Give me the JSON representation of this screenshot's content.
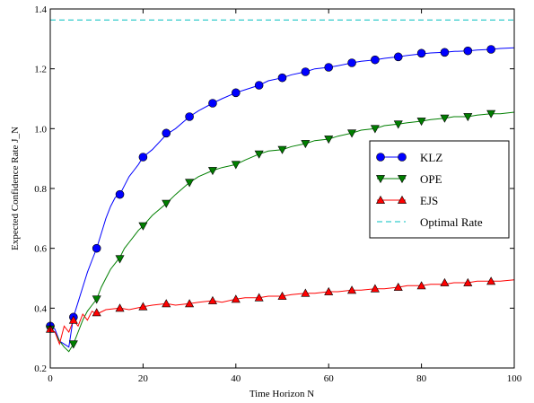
{
  "chart_data": {
    "type": "line",
    "xlabel": "Time Horizon N",
    "ylabel": "Expected Confidence Rate J_N",
    "xlim": [
      0,
      100
    ],
    "ylim": [
      0.2,
      1.4
    ],
    "x_ticks": [
      "0",
      "20",
      "40",
      "60",
      "80",
      "100"
    ],
    "y_ticks": [
      "0.2",
      "0.4",
      "0.6",
      "0.8",
      "1.0",
      "1.2",
      "1.4"
    ],
    "grid": false,
    "legend_position": "center-right",
    "series": [
      {
        "name": "KLZ",
        "color": "#0000ff",
        "marker": "circle",
        "line_x": [
          0,
          1,
          2,
          3,
          4,
          5,
          6,
          7,
          8,
          9,
          10,
          11,
          12,
          13,
          14,
          15,
          16,
          17,
          18,
          19,
          20,
          22,
          25,
          27,
          30,
          32,
          35,
          37,
          40,
          42,
          45,
          47,
          50,
          52,
          55,
          57,
          60,
          62,
          65,
          67,
          70,
          72,
          75,
          77,
          80,
          82,
          85,
          87,
          90,
          92,
          95,
          97,
          100
        ],
        "line_y": [
          0.34,
          0.33,
          0.29,
          0.28,
          0.27,
          0.37,
          0.42,
          0.47,
          0.52,
          0.56,
          0.6,
          0.65,
          0.7,
          0.74,
          0.77,
          0.78,
          0.81,
          0.84,
          0.86,
          0.88,
          0.905,
          0.93,
          0.98,
          1.0,
          1.04,
          1.06,
          1.085,
          1.1,
          1.12,
          1.13,
          1.145,
          1.16,
          1.17,
          1.18,
          1.19,
          1.2,
          1.205,
          1.21,
          1.22,
          1.225,
          1.23,
          1.235,
          1.24,
          1.245,
          1.25,
          1.253,
          1.255,
          1.258,
          1.26,
          1.263,
          1.265,
          1.268,
          1.27
        ],
        "marker_x": [
          0,
          5,
          10,
          15,
          20,
          25,
          30,
          35,
          40,
          45,
          50,
          55,
          60,
          65,
          70,
          75,
          80,
          85,
          90,
          95
        ],
        "marker_y": [
          0.34,
          0.37,
          0.6,
          0.78,
          0.905,
          0.985,
          1.04,
          1.085,
          1.12,
          1.145,
          1.17,
          1.19,
          1.205,
          1.22,
          1.23,
          1.24,
          1.252,
          1.255,
          1.26,
          1.265
        ]
      },
      {
        "name": "OPE",
        "color": "#007f00",
        "marker": "triangle-down",
        "line_x": [
          0,
          1,
          2,
          3,
          4,
          5,
          6,
          7,
          8,
          9,
          10,
          11,
          12,
          13,
          14,
          15,
          16,
          17,
          18,
          19,
          20,
          22,
          25,
          27,
          30,
          32,
          35,
          37,
          40,
          42,
          45,
          47,
          50,
          52,
          55,
          57,
          60,
          62,
          65,
          67,
          70,
          72,
          75,
          77,
          80,
          82,
          85,
          87,
          90,
          92,
          95,
          97,
          100
        ],
        "line_y": [
          0.33,
          0.32,
          0.29,
          0.27,
          0.255,
          0.28,
          0.32,
          0.36,
          0.39,
          0.41,
          0.43,
          0.47,
          0.5,
          0.53,
          0.55,
          0.57,
          0.6,
          0.62,
          0.64,
          0.66,
          0.675,
          0.71,
          0.75,
          0.78,
          0.82,
          0.84,
          0.86,
          0.87,
          0.88,
          0.895,
          0.915,
          0.925,
          0.93,
          0.94,
          0.95,
          0.96,
          0.965,
          0.975,
          0.985,
          0.995,
          1.0,
          1.01,
          1.015,
          1.02,
          1.025,
          1.03,
          1.035,
          1.04,
          1.04,
          1.045,
          1.05,
          1.05,
          1.055
        ],
        "marker_x": [
          0,
          5,
          10,
          15,
          20,
          25,
          30,
          35,
          40,
          45,
          50,
          55,
          60,
          65,
          70,
          75,
          80,
          85,
          90,
          95
        ],
        "marker_y": [
          0.33,
          0.28,
          0.43,
          0.565,
          0.675,
          0.75,
          0.82,
          0.86,
          0.88,
          0.915,
          0.93,
          0.95,
          0.965,
          0.985,
          1.0,
          1.015,
          1.025,
          1.035,
          1.04,
          1.05
        ]
      },
      {
        "name": "EJS",
        "color": "#ff0000",
        "marker": "triangle-up",
        "line_x": [
          0,
          1,
          2,
          3,
          4,
          5,
          6,
          7,
          8,
          9,
          10,
          12,
          15,
          17,
          20,
          22,
          25,
          27,
          30,
          32,
          35,
          37,
          40,
          42,
          45,
          47,
          50,
          52,
          55,
          57,
          60,
          62,
          65,
          67,
          70,
          72,
          75,
          77,
          80,
          82,
          85,
          87,
          90,
          92,
          95,
          97,
          100
        ],
        "line_y": [
          0.33,
          0.32,
          0.28,
          0.34,
          0.32,
          0.36,
          0.34,
          0.38,
          0.36,
          0.39,
          0.38,
          0.395,
          0.4,
          0.395,
          0.405,
          0.41,
          0.415,
          0.41,
          0.415,
          0.42,
          0.425,
          0.42,
          0.43,
          0.435,
          0.435,
          0.44,
          0.44,
          0.445,
          0.45,
          0.45,
          0.455,
          0.455,
          0.46,
          0.46,
          0.465,
          0.465,
          0.47,
          0.475,
          0.475,
          0.48,
          0.48,
          0.485,
          0.485,
          0.49,
          0.49,
          0.49,
          0.495
        ],
        "marker_x": [
          0,
          5,
          10,
          15,
          20,
          25,
          30,
          35,
          40,
          45,
          50,
          55,
          60,
          65,
          70,
          75,
          80,
          85,
          90,
          95
        ],
        "marker_y": [
          0.33,
          0.36,
          0.385,
          0.4,
          0.405,
          0.415,
          0.415,
          0.425,
          0.43,
          0.435,
          0.44,
          0.45,
          0.455,
          0.46,
          0.465,
          0.47,
          0.475,
          0.485,
          0.485,
          0.49
        ]
      },
      {
        "name": "Optimal Rate",
        "color": "#00bfbf",
        "marker": "none",
        "dashed": true,
        "line_x": [
          0,
          100
        ],
        "line_y": [
          1.363,
          1.363
        ]
      }
    ]
  }
}
